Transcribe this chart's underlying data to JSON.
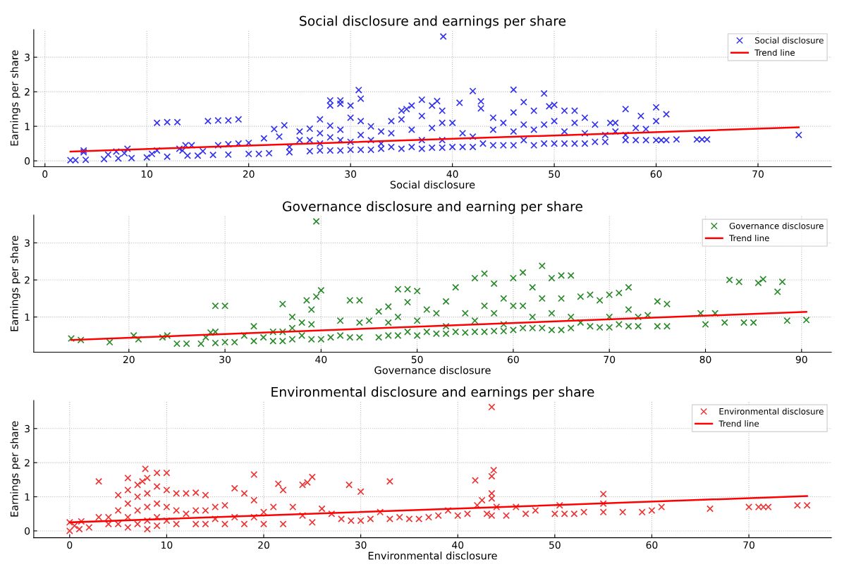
{
  "chart_data": [
    {
      "type": "scatter",
      "title": "Social disclosure and earnings per share",
      "xlabel": "Social disclosure",
      "ylabel": "Earnings per share",
      "xlim": [
        -1.1,
        77.2
      ],
      "ylim": [
        -0.17,
        3.8
      ],
      "xticks": [
        0,
        10,
        20,
        30,
        40,
        50,
        60,
        70
      ],
      "yticks": [
        0,
        1,
        2,
        3
      ],
      "grid": true,
      "legend": "top right",
      "series": [
        {
          "name": "Social disclosure",
          "color": "#3333ee",
          "marker": "cross",
          "x": [
            2.5,
            3,
            3.8,
            3.8,
            4,
            5.8,
            6.2,
            7,
            7.2,
            7.8,
            8.1,
            8.5,
            10,
            10.5,
            11,
            11,
            12,
            12,
            13,
            13.2,
            13.5,
            13.8,
            14,
            14.4,
            15,
            15.5,
            16,
            16.5,
            17,
            17,
            18,
            18,
            18,
            19,
            19,
            20,
            20,
            21,
            21.5,
            22,
            22.5,
            23,
            23.5,
            24,
            24,
            25,
            25,
            26,
            26,
            26,
            27,
            27,
            27,
            27,
            28,
            28,
            28,
            28,
            28,
            29,
            29,
            29,
            29,
            29,
            30,
            30,
            30,
            30,
            30.8,
            31,
            31,
            31,
            31,
            32,
            32,
            32,
            33,
            33,
            33,
            34,
            34,
            34,
            35,
            35,
            35,
            35.5,
            36,
            36,
            36,
            37,
            37,
            37,
            37,
            38,
            38,
            38,
            38.5,
            39,
            39,
            39,
            39,
            39.1,
            40,
            40,
            40.7,
            41,
            41,
            42,
            42,
            42,
            42.8,
            42.8,
            43,
            44,
            44,
            44,
            45,
            45,
            46,
            46,
            46,
            46,
            47,
            47,
            47,
            48,
            48,
            48,
            49,
            49,
            49,
            49.5,
            50,
            50,
            50,
            51,
            51,
            51,
            52,
            52,
            52,
            53,
            53,
            53,
            54,
            54,
            55,
            55,
            55.5,
            56,
            56,
            57,
            57,
            57,
            58,
            58,
            58.5,
            59,
            59,
            60,
            60,
            60,
            60.5,
            61,
            61,
            62,
            64,
            64.5,
            65,
            74
          ],
          "values": [
            0.02,
            0.02,
            0.25,
            0.3,
            0.03,
            0.05,
            0.18,
            0.27,
            0.07,
            0.22,
            0.35,
            0.08,
            0.1,
            0.2,
            1.1,
            0.3,
            1.12,
            0.12,
            1.12,
            0.35,
            0.3,
            0.45,
            0.15,
            0.45,
            0.15,
            0.28,
            1.15,
            0.17,
            1.17,
            0.45,
            1.17,
            0.18,
            0.48,
            1.2,
            0.5,
            0.2,
            0.52,
            0.2,
            0.65,
            0.22,
            0.92,
            0.7,
            1.03,
            0.25,
            0.4,
            0.85,
            0.6,
            0.93,
            0.6,
            0.28,
            1.2,
            0.8,
            0.5,
            0.3,
            1.75,
            1.6,
            1.02,
            0.68,
            0.3,
            1.75,
            1.65,
            0.9,
            0.6,
            0.3,
            1.6,
            1.25,
            0.55,
            0.32,
            2.05,
            1.8,
            1.15,
            0.75,
            0.32,
            1.0,
            0.6,
            0.32,
            0.85,
            0.5,
            0.35,
            1.15,
            0.8,
            0.4,
            1.45,
            1.2,
            0.35,
            1.5,
            1.6,
            0.9,
            0.4,
            1.77,
            1.3,
            0.6,
            0.35,
            1.6,
            0.95,
            0.38,
            1.73,
            1.45,
            1.1,
            0.6,
            0.38,
            3.6,
            1.1,
            0.4,
            1.68,
            0.8,
            0.4,
            2.02,
            0.7,
            0.4,
            1.72,
            1.52,
            0.5,
            1.25,
            0.9,
            0.45,
            1.1,
            0.45,
            2.06,
            1.4,
            0.85,
            0.45,
            1.7,
            1.05,
            0.6,
            1.45,
            0.9,
            0.45,
            1.95,
            1.05,
            0.5,
            1.58,
            1.62,
            1.15,
            0.5,
            1.45,
            0.85,
            0.5,
            1.45,
            1.1,
            0.5,
            1.25,
            0.8,
            0.5,
            1.05,
            0.55,
            0.75,
            0.55,
            1.1,
            1.1,
            0.85,
            1.5,
            0.6,
            0.75,
            0.95,
            0.6,
            1.3,
            0.92,
            0.6,
            1.55,
            1.15,
            0.6,
            0.6,
            1.35,
            0.6,
            0.62,
            0.62,
            0.62,
            0.62,
            0.75
          ]
        },
        {
          "name": "Trend line",
          "type": "line",
          "color": "#ff0000",
          "x": [
            2.5,
            74
          ],
          "values": [
            0.27,
            0.97
          ]
        }
      ]
    },
    {
      "type": "scatter",
      "title": "Governance disclosure and earning per share",
      "xlabel": "Governance disclosure",
      "ylabel": "Earnings per share",
      "xlim": [
        10.1,
        93.1
      ],
      "ylim": [
        0.05,
        3.75
      ],
      "xticks": [
        20,
        30,
        40,
        50,
        60,
        70,
        80,
        90
      ],
      "yticks": [
        1,
        2,
        3
      ],
      "grid": true,
      "legend": "top right",
      "series": [
        {
          "name": "Governance disclosure",
          "color": "#2a8a2a",
          "marker": "cross",
          "x": [
            14,
            15,
            18,
            20.5,
            21,
            23.5,
            24,
            25,
            26,
            27.5,
            28,
            28.5,
            29,
            29,
            29,
            30,
            30,
            31,
            32,
            33,
            33,
            34,
            35,
            35,
            36,
            36,
            36,
            37,
            37,
            37,
            38,
            38,
            38.5,
            39,
            39,
            39,
            39.5,
            39.5,
            40,
            40,
            41,
            42,
            42,
            43,
            43,
            44,
            44,
            44,
            45,
            46,
            46,
            47,
            47,
            47,
            48,
            48,
            48,
            49,
            49,
            49,
            50,
            50,
            50,
            51,
            51,
            52,
            52,
            53,
            53,
            53,
            54,
            54,
            55,
            55,
            56,
            56,
            56,
            57,
            57,
            57,
            58,
            58,
            58,
            59,
            59,
            59,
            60,
            60,
            60,
            61,
            61,
            61,
            62,
            62,
            62,
            63,
            63,
            63,
            64,
            64,
            64,
            65,
            65,
            65,
            66,
            66,
            66,
            67,
            67,
            68,
            68,
            69,
            69,
            70,
            70,
            70,
            71,
            71,
            72,
            72,
            72,
            73,
            73,
            74,
            75,
            75,
            76,
            76,
            79.5,
            80,
            81,
            82,
            82.5,
            83.5,
            84,
            85,
            85.5,
            86,
            87.5,
            88,
            88.5,
            90.5
          ],
          "values": [
            0.42,
            0.38,
            0.32,
            0.5,
            0.4,
            0.45,
            0.5,
            0.28,
            0.28,
            0.28,
            0.45,
            0.58,
            1.3,
            0.6,
            0.3,
            1.3,
            0.32,
            0.32,
            0.5,
            0.75,
            0.35,
            0.45,
            0.6,
            0.35,
            1.35,
            0.6,
            0.35,
            1.0,
            0.7,
            0.4,
            0.85,
            0.5,
            1.45,
            1.2,
            0.8,
            0.4,
            1.55,
            3.58,
            1.72,
            0.4,
            0.45,
            0.9,
            0.5,
            1.45,
            0.45,
            1.45,
            0.85,
            0.45,
            0.9,
            1.15,
            0.45,
            1.28,
            0.85,
            0.5,
            1.75,
            1.0,
            0.5,
            1.75,
            1.4,
            0.6,
            1.7,
            0.9,
            0.5,
            1.2,
            0.6,
            1.1,
            0.55,
            1.42,
            0.75,
            0.55,
            1.8,
            0.6,
            1.1,
            0.58,
            2.05,
            0.9,
            0.6,
            2.17,
            1.3,
            0.6,
            1.9,
            1.1,
            0.62,
            1.5,
            0.8,
            0.62,
            2.05,
            1.3,
            0.65,
            2.2,
            1.3,
            0.7,
            1.8,
            1.0,
            0.7,
            2.38,
            1.5,
            0.7,
            2.05,
            1.1,
            0.65,
            2.12,
            1.5,
            0.65,
            2.12,
            1.0,
            0.7,
            1.55,
            0.85,
            1.6,
            0.75,
            1.45,
            0.72,
            1.6,
            1.0,
            0.72,
            1.65,
            0.8,
            1.8,
            1.2,
            0.75,
            1.0,
            0.75,
            1.05,
            1.42,
            0.75,
            1.35,
            0.75,
            1.1,
            0.8,
            1.1,
            0.85,
            2.0,
            1.95,
            0.85,
            0.85,
            1.92,
            2.02,
            1.68,
            1.95,
            0.9,
            0.92
          ]
        },
        {
          "name": "Trend line",
          "type": "line",
          "color": "#ff0000",
          "x": [
            14,
            90.5
          ],
          "values": [
            0.38,
            1.14
          ]
        }
      ]
    },
    {
      "type": "scatter",
      "title": "Environmental disclosure and earnings per share",
      "xlabel": "Environmental disclosure",
      "ylabel": "Earnings per share",
      "xlim": [
        -3.7,
        78.5
      ],
      "ylim": [
        -0.2,
        3.82
      ],
      "xticks": [
        0,
        10,
        20,
        30,
        40,
        50,
        60,
        70
      ],
      "yticks": [
        0,
        1,
        2,
        3
      ],
      "grid": true,
      "legend": "top right",
      "series": [
        {
          "name": "Environmental disclosure",
          "color": "#ee3333",
          "marker": "cross",
          "x": [
            0,
            0,
            0.5,
            1,
            1.2,
            2,
            3,
            3,
            4,
            4,
            5,
            5,
            5,
            6,
            6,
            6,
            6,
            6,
            7,
            7,
            7,
            7,
            7.5,
            7.8,
            8,
            8,
            8,
            8,
            8,
            9,
            9,
            9,
            9,
            9,
            10,
            10,
            10,
            10,
            11,
            11,
            11,
            12,
            12,
            13,
            13,
            13,
            14,
            14,
            14,
            15,
            15,
            16,
            16,
            17,
            17,
            18,
            18,
            19,
            19,
            19,
            20,
            20,
            21,
            21.5,
            22,
            22,
            23,
            24,
            24,
            24.5,
            25,
            25,
            26,
            27,
            28,
            28.8,
            29,
            30,
            30,
            31,
            32,
            33,
            33,
            34,
            35,
            36,
            37,
            38,
            39,
            40,
            41,
            41.8,
            42,
            42.5,
            43,
            43.5,
            43.5,
            43.7,
            43.5,
            43.5,
            43.5,
            44,
            45,
            46,
            47,
            48,
            50,
            50.5,
            51,
            52,
            53,
            55,
            55,
            55,
            57,
            59,
            60,
            61,
            66,
            70,
            71,
            71.5,
            72,
            75,
            76
          ],
          "values": [
            0.0,
            0.25,
            0.15,
            0.05,
            0.28,
            0.1,
            1.45,
            0.4,
            0.2,
            0.4,
            1.05,
            0.6,
            0.2,
            1.55,
            1.2,
            0.8,
            0.4,
            0.1,
            1.35,
            1.0,
            0.6,
            0.2,
            1.45,
            1.82,
            1.55,
            1.1,
            0.7,
            0.3,
            0.05,
            1.7,
            1.3,
            0.8,
            0.4,
            0.15,
            1.7,
            1.2,
            0.7,
            0.3,
            1.1,
            0.6,
            0.2,
            1.1,
            0.5,
            1.12,
            0.6,
            0.2,
            1.05,
            0.6,
            0.2,
            0.7,
            0.35,
            0.75,
            0.2,
            1.25,
            0.4,
            1.1,
            0.2,
            1.65,
            0.9,
            0.4,
            0.55,
            0.2,
            0.7,
            1.38,
            1.2,
            0.2,
            0.7,
            1.35,
            0.45,
            1.42,
            1.58,
            0.25,
            0.65,
            0.5,
            0.35,
            1.35,
            0.3,
            1.15,
            0.3,
            0.35,
            0.55,
            1.45,
            0.35,
            0.4,
            0.35,
            0.35,
            0.4,
            0.45,
            0.6,
            0.45,
            0.5,
            1.48,
            0.75,
            0.9,
            0.5,
            3.63,
            1.6,
            1.78,
            1.1,
            0.95,
            0.45,
            0.7,
            0.45,
            0.7,
            0.5,
            0.6,
            0.5,
            0.75,
            0.5,
            0.5,
            0.55,
            1.08,
            0.8,
            0.55,
            0.55,
            0.55,
            0.6,
            0.7,
            0.65,
            0.7,
            0.7,
            0.7,
            0.7,
            0.75,
            0.75
          ]
        },
        {
          "name": "Trend line",
          "type": "line",
          "color": "#ff0000",
          "x": [
            0,
            76
          ],
          "values": [
            0.25,
            1.02
          ]
        }
      ]
    }
  ]
}
